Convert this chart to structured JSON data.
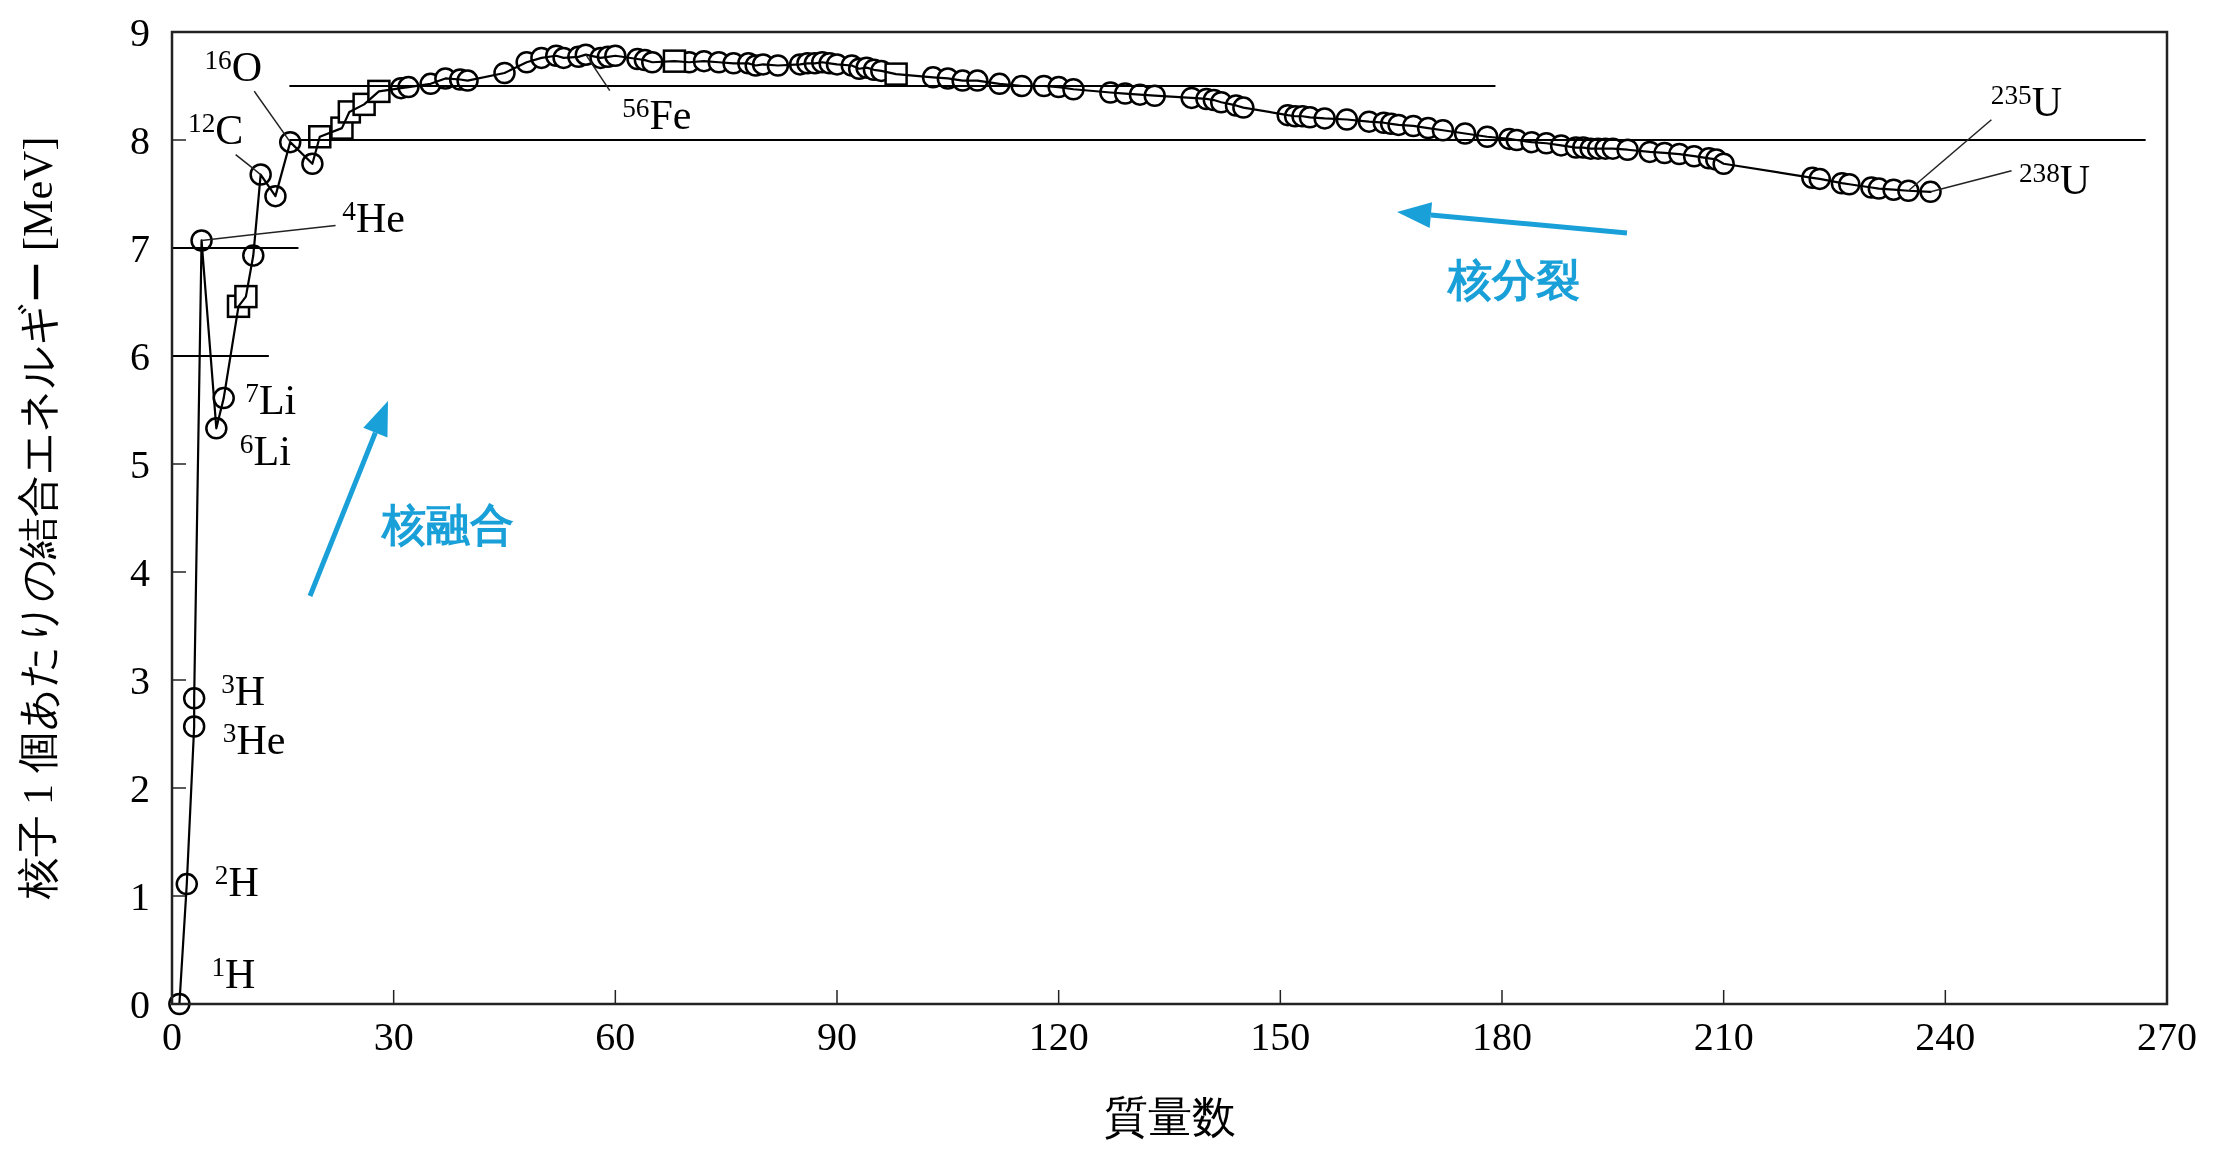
{
  "chart_data": {
    "type": "line",
    "xlabel": "質量数",
    "ylabel": "核子 1 個あたりの結合エネルギー [MeV]",
    "xlim": [
      0,
      270
    ],
    "xticks": [
      0,
      30,
      60,
      90,
      120,
      150,
      180,
      210,
      240,
      270
    ],
    "ylim": [
      0,
      9
    ],
    "yticks": [
      0,
      1,
      2,
      3,
      4,
      5,
      6,
      7,
      8,
      9
    ],
    "grid": false,
    "series": [
      {
        "type": "line",
        "color": "#000000",
        "marker": "none",
        "x": [
          1,
          2,
          3,
          3,
          4,
          6,
          7,
          9,
          10,
          11,
          12,
          14,
          16,
          19,
          20,
          23,
          24,
          26,
          28,
          31,
          32,
          35,
          37,
          39,
          40,
          45,
          48,
          50,
          52,
          53,
          55,
          56,
          58,
          59,
          60,
          63,
          64,
          65,
          68,
          70,
          72,
          74,
          76,
          78,
          79,
          80,
          82,
          85,
          86,
          87,
          88,
          89,
          90,
          92,
          93,
          94,
          95,
          96,
          98,
          103,
          105,
          107,
          109,
          112,
          115,
          118,
          120,
          122,
          127,
          129,
          131,
          133,
          138,
          140,
          141,
          142,
          144,
          145,
          151,
          152,
          153,
          154,
          156,
          159,
          162,
          164,
          165,
          166,
          168,
          170,
          172,
          175,
          178,
          181,
          182,
          184,
          186,
          188,
          190,
          191,
          192,
          193,
          194,
          195,
          197,
          200,
          202,
          204,
          206,
          208,
          209,
          210,
          222,
          223,
          226,
          227,
          230,
          231,
          233,
          235,
          238
        ],
        "values": [
          0,
          1.11,
          2.57,
          2.83,
          7.07,
          5.33,
          5.61,
          6.46,
          6.55,
          6.93,
          7.68,
          7.48,
          7.98,
          7.78,
          8.03,
          8.11,
          8.26,
          8.33,
          8.45,
          8.48,
          8.49,
          8.52,
          8.57,
          8.56,
          8.55,
          8.62,
          8.72,
          8.76,
          8.78,
          8.76,
          8.77,
          8.79,
          8.76,
          8.77,
          8.78,
          8.75,
          8.74,
          8.72,
          8.73,
          8.72,
          8.73,
          8.72,
          8.71,
          8.71,
          8.69,
          8.7,
          8.69,
          8.7,
          8.71,
          8.71,
          8.72,
          8.71,
          8.7,
          8.69,
          8.66,
          8.67,
          8.65,
          8.64,
          8.61,
          8.58,
          8.57,
          8.55,
          8.55,
          8.52,
          8.5,
          8.5,
          8.49,
          8.47,
          8.44,
          8.43,
          8.42,
          8.41,
          8.39,
          8.38,
          8.37,
          8.35,
          8.32,
          8.3,
          8.23,
          8.22,
          8.22,
          8.21,
          8.2,
          8.19,
          8.17,
          8.16,
          8.15,
          8.14,
          8.13,
          8.11,
          8.09,
          8.06,
          8.03,
          8.01,
          8.0,
          7.98,
          7.97,
          7.95,
          7.93,
          7.93,
          7.92,
          7.92,
          7.92,
          7.92,
          7.91,
          7.89,
          7.88,
          7.87,
          7.85,
          7.83,
          7.82,
          7.78,
          7.65,
          7.64,
          7.6,
          7.59,
          7.56,
          7.55,
          7.54,
          7.53,
          7.52
        ]
      },
      {
        "type": "scatter",
        "color": "#000000",
        "marker": "circle",
        "x": [
          1,
          2,
          3,
          3,
          4,
          6,
          7,
          11,
          12,
          14,
          16,
          19,
          31,
          32,
          35,
          37,
          39,
          40,
          45,
          48,
          50,
          52,
          53,
          55,
          56,
          58,
          59,
          60,
          63,
          64,
          65,
          70,
          72,
          74,
          76,
          78,
          79,
          80,
          82,
          85,
          86,
          87,
          88,
          89,
          90,
          92,
          93,
          94,
          95,
          96,
          103,
          105,
          107,
          109,
          112,
          115,
          118,
          120,
          122,
          127,
          129,
          131,
          133,
          138,
          140,
          141,
          142,
          144,
          145,
          151,
          152,
          153,
          154,
          156,
          159,
          162,
          164,
          165,
          166,
          168,
          170,
          172,
          175,
          178,
          181,
          182,
          184,
          186,
          188,
          190,
          191,
          192,
          193,
          194,
          195,
          197,
          200,
          202,
          204,
          206,
          208,
          209,
          210,
          222,
          223,
          226,
          227,
          230,
          231,
          233,
          235,
          238
        ],
        "values": [
          0,
          1.11,
          2.57,
          2.83,
          7.07,
          5.33,
          5.61,
          6.93,
          7.68,
          7.48,
          7.98,
          7.78,
          8.48,
          8.49,
          8.52,
          8.57,
          8.56,
          8.55,
          8.62,
          8.72,
          8.76,
          8.78,
          8.76,
          8.77,
          8.79,
          8.76,
          8.77,
          8.78,
          8.75,
          8.74,
          8.72,
          8.72,
          8.73,
          8.72,
          8.71,
          8.71,
          8.69,
          8.7,
          8.69,
          8.7,
          8.71,
          8.71,
          8.72,
          8.71,
          8.7,
          8.69,
          8.66,
          8.67,
          8.65,
          8.64,
          8.58,
          8.57,
          8.55,
          8.55,
          8.52,
          8.5,
          8.5,
          8.49,
          8.47,
          8.44,
          8.43,
          8.42,
          8.41,
          8.39,
          8.38,
          8.37,
          8.35,
          8.32,
          8.3,
          8.23,
          8.22,
          8.22,
          8.21,
          8.2,
          8.19,
          8.17,
          8.16,
          8.15,
          8.14,
          8.13,
          8.11,
          8.09,
          8.06,
          8.03,
          8.01,
          8.0,
          7.98,
          7.97,
          7.95,
          7.93,
          7.93,
          7.92,
          7.92,
          7.92,
          7.92,
          7.91,
          7.89,
          7.88,
          7.87,
          7.85,
          7.83,
          7.82,
          7.78,
          7.65,
          7.64,
          7.6,
          7.59,
          7.56,
          7.55,
          7.54,
          7.53,
          7.52
        ]
      },
      {
        "type": "scatter",
        "color": "#000000",
        "marker": "square",
        "x": [
          9,
          10,
          20,
          23,
          24,
          26,
          28,
          68,
          98
        ],
        "values": [
          6.46,
          6.55,
          8.03,
          8.11,
          8.26,
          8.33,
          8.45,
          8.73,
          8.61
        ]
      },
      {
        "type": "line",
        "color": "#000000",
        "marker": "none",
        "x": [
          16,
          179
        ],
        "values": [
          8.5,
          8.5
        ]
      },
      {
        "type": "line",
        "color": "#000000",
        "marker": "none",
        "x": [
          16,
          267
        ],
        "values": [
          8,
          8
        ]
      },
      {
        "type": "line",
        "color": "#000000",
        "marker": "none",
        "x": [
          0,
          17
        ],
        "values": [
          7,
          7
        ]
      },
      {
        "type": "line",
        "color": "#000000",
        "marker": "none",
        "x": [
          0,
          13
        ],
        "values": [
          6,
          6
        ]
      }
    ],
    "annotations": [
      {
        "text": "$^{1}$H",
        "x": 1,
        "y": 0
      },
      {
        "text": "$^{2}$H",
        "x": 2,
        "y": 1.11
      },
      {
        "text": "$^{3}$H",
        "x": 3,
        "y": 2.83
      },
      {
        "text": "$^{3}$He",
        "x": 3,
        "y": 2.57
      },
      {
        "text": "$^{4}$He",
        "x": 4,
        "y": 7.07
      },
      {
        "text": "$^{7}$Li",
        "x": 7,
        "y": 5.61
      },
      {
        "text": "$^{6}$Li",
        "x": 6,
        "y": 5.33
      },
      {
        "text": "$^{12}$C",
        "x": 12,
        "y": 7.68
      },
      {
        "text": "$^{16}$O",
        "x": 16,
        "y": 7.98
      },
      {
        "text": "$^{56}$Fe",
        "x": 56,
        "y": 8.79
      },
      {
        "text": "$^{235}$U",
        "x": 235,
        "y": 7.53
      },
      {
        "text": "$^{238}$U",
        "x": 238,
        "y": 7.52
      },
      "核融合",
      "核分裂"
    ]
  }
}
